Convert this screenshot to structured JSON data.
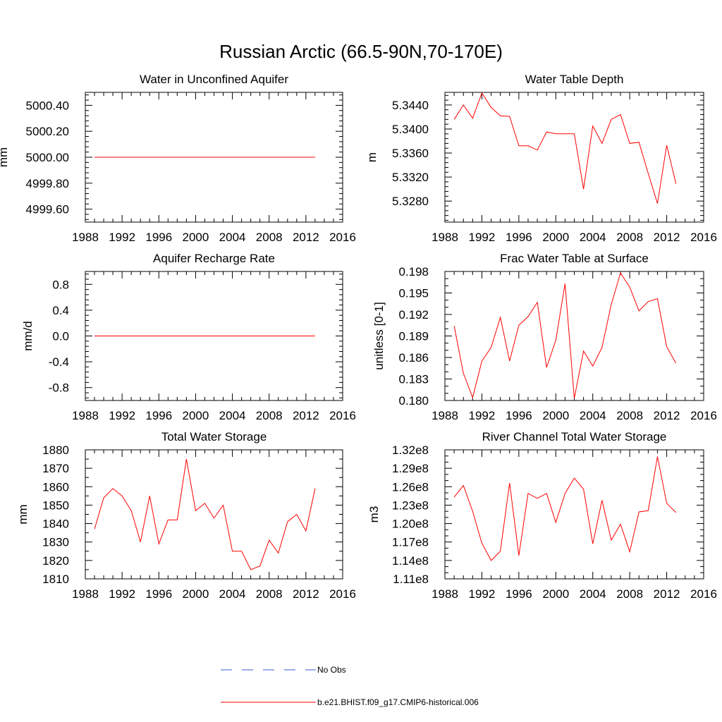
{
  "figure": {
    "title": "Russian Arctic (66.5-90N,70-170E)"
  },
  "legend": {
    "items": [
      {
        "label": "No Obs",
        "color": "#3b5bd6",
        "style": "dashed"
      },
      {
        "label": "b.e21.BHIST.f09_g17.CMIP6-historical.006",
        "color": "#ff0000",
        "style": "solid"
      }
    ]
  },
  "chart_data": [
    {
      "type": "line",
      "title": "Water in Unconfined Aquifer",
      "xlabel": "",
      "ylabel": "mm",
      "xlim": [
        1988,
        2016
      ],
      "ylim": [
        4999.5,
        5000.5
      ],
      "xticks": [
        1988,
        1992,
        1996,
        2000,
        2004,
        2008,
        2012,
        2016
      ],
      "yticks": [
        4999.6,
        4999.8,
        5000.0,
        5000.2,
        5000.4
      ],
      "ytick_labels": [
        "4999.60",
        "4999.80",
        "5000.00",
        "5000.20",
        "5000.40"
      ],
      "yminor": 4,
      "x": [
        1989,
        1990,
        1991,
        1992,
        1993,
        1994,
        1995,
        1996,
        1997,
        1998,
        1999,
        2000,
        2001,
        2002,
        2003,
        2004,
        2005,
        2006,
        2007,
        2008,
        2009,
        2010,
        2011,
        2012,
        2013
      ],
      "series": [
        {
          "values": [
            5000.0,
            5000.0,
            5000.0,
            5000.0,
            5000.0,
            5000.0,
            5000.0,
            5000.0,
            5000.0,
            5000.0,
            5000.0,
            5000.0,
            5000.0,
            5000.0,
            5000.0,
            5000.0,
            5000.0,
            5000.0,
            5000.0,
            5000.0,
            5000.0,
            5000.0,
            5000.0,
            5000.0,
            5000.0
          ]
        }
      ]
    },
    {
      "type": "line",
      "title": "Water Table Depth",
      "xlabel": "",
      "ylabel": "m",
      "xlim": [
        1988,
        2016
      ],
      "ylim": [
        5.3245,
        5.3461
      ],
      "xticks": [
        1988,
        1992,
        1996,
        2000,
        2004,
        2008,
        2012,
        2016
      ],
      "yticks": [
        5.328,
        5.332,
        5.336,
        5.34,
        5.344
      ],
      "ytick_labels": [
        "5.3280",
        "5.3320",
        "5.3360",
        "5.3400",
        "5.3440"
      ],
      "yminor": 4,
      "x": [
        1989,
        1990,
        1991,
        1992,
        1993,
        1994,
        1995,
        1996,
        1997,
        1998,
        1999,
        2000,
        2001,
        2002,
        2003,
        2004,
        2005,
        2006,
        2007,
        2008,
        2009,
        2010,
        2011,
        2012,
        2013
      ],
      "series": [
        {
          "values": [
            5.3416,
            5.344,
            5.3418,
            5.346,
            5.3436,
            5.3422,
            5.3421,
            5.3372,
            5.3372,
            5.3365,
            5.3395,
            5.3392,
            5.3392,
            5.3392,
            5.33,
            5.3405,
            5.3376,
            5.3416,
            5.3424,
            5.3376,
            5.3378,
            5.3326,
            5.3276,
            5.3373,
            5.3309
          ]
        }
      ]
    },
    {
      "type": "line",
      "title": "Aquifer Recharge Rate",
      "xlabel": "",
      "ylabel": "mm/d",
      "xlim": [
        1988,
        2016
      ],
      "ylim": [
        -1.0,
        1.0
      ],
      "xticks": [
        1988,
        1992,
        1996,
        2000,
        2004,
        2008,
        2012,
        2016
      ],
      "yticks": [
        -0.8,
        -0.4,
        0.0,
        0.4,
        0.8
      ],
      "ytick_labels": [
        "-0.8",
        "-0.4",
        "0.0",
        "0.4",
        "0.8"
      ],
      "yminor": 4,
      "x": [
        1989,
        1990,
        1991,
        1992,
        1993,
        1994,
        1995,
        1996,
        1997,
        1998,
        1999,
        2000,
        2001,
        2002,
        2003,
        2004,
        2005,
        2006,
        2007,
        2008,
        2009,
        2010,
        2011,
        2012,
        2013
      ],
      "series": [
        {
          "values": [
            0,
            0,
            0,
            0,
            0,
            0,
            0,
            0,
            0,
            0,
            0,
            0,
            0,
            0,
            0,
            0,
            0,
            0,
            0,
            0,
            0,
            0,
            0,
            0,
            0
          ]
        }
      ]
    },
    {
      "type": "line",
      "title": "Frac Water Table at Surface",
      "xlabel": "",
      "ylabel": "unitless [0-1]",
      "xlim": [
        1988,
        2016
      ],
      "ylim": [
        0.18,
        0.198
      ],
      "xticks": [
        1988,
        1992,
        1996,
        2000,
        2004,
        2008,
        2012,
        2016
      ],
      "yticks": [
        0.18,
        0.183,
        0.186,
        0.189,
        0.192,
        0.195,
        0.198
      ],
      "ytick_labels": [
        "0.180",
        "0.183",
        "0.186",
        "0.189",
        "0.192",
        "0.195",
        "0.198"
      ],
      "yminor": 2,
      "x": [
        1989,
        1990,
        1991,
        1992,
        1993,
        1994,
        1995,
        1996,
        1997,
        1998,
        1999,
        2000,
        2001,
        2002,
        2003,
        2004,
        2005,
        2006,
        2007,
        2008,
        2009,
        2010,
        2011,
        2012,
        2013
      ],
      "series": [
        {
          "values": [
            0.1904,
            0.1838,
            0.1804,
            0.1855,
            0.1874,
            0.1916,
            0.1855,
            0.1905,
            0.1917,
            0.1937,
            0.1846,
            0.1884,
            0.1963,
            0.1803,
            0.1869,
            0.1848,
            0.1874,
            0.1934,
            0.1978,
            0.1958,
            0.1925,
            0.1938,
            0.1942,
            0.1875,
            0.1852
          ]
        }
      ]
    },
    {
      "type": "line",
      "title": "Total Water Storage",
      "xlabel": "",
      "ylabel": "mm",
      "xlim": [
        1988,
        2016
      ],
      "ylim": [
        1810,
        1880
      ],
      "xticks": [
        1988,
        1992,
        1996,
        2000,
        2004,
        2008,
        2012,
        2016
      ],
      "yticks": [
        1810,
        1820,
        1830,
        1840,
        1850,
        1860,
        1870,
        1880
      ],
      "ytick_labels": [
        "1810",
        "1820",
        "1830",
        "1840",
        "1850",
        "1860",
        "1870",
        "1880"
      ],
      "yminor": 1,
      "x": [
        1989,
        1990,
        1991,
        1992,
        1993,
        1994,
        1995,
        1996,
        1997,
        1998,
        1999,
        2000,
        2001,
        2002,
        2003,
        2004,
        2005,
        2006,
        2007,
        2008,
        2009,
        2010,
        2011,
        2012,
        2013
      ],
      "series": [
        {
          "values": [
            1837,
            1854,
            1859,
            1855,
            1847,
            1830,
            1855,
            1829,
            1842,
            1842,
            1875,
            1847,
            1851,
            1843,
            1850,
            1825,
            1825,
            1815,
            1817,
            1831,
            1824,
            1841,
            1845,
            1836,
            1859
          ]
        }
      ]
    },
    {
      "type": "line",
      "title": "River Channel Total Water Storage",
      "xlabel": "",
      "ylabel": "m3",
      "xlim": [
        1988,
        2016
      ],
      "ylim": [
        111000000,
        132000000
      ],
      "xticks": [
        1988,
        1992,
        1996,
        2000,
        2004,
        2008,
        2012,
        2016
      ],
      "yticks": [
        111000000,
        114000000,
        117000000,
        120000000,
        123000000,
        126000000,
        129000000,
        132000000
      ],
      "ytick_labels": [
        "1.11e8",
        "1.14e8",
        "1.17e8",
        "1.20e8",
        "1.23e8",
        "1.26e8",
        "1.29e8",
        "1.32e8"
      ],
      "yminor": 2,
      "x": [
        1989,
        1990,
        1991,
        1992,
        1993,
        1994,
        1995,
        1996,
        1997,
        1998,
        1999,
        2000,
        2001,
        2002,
        2003,
        2004,
        2005,
        2006,
        2007,
        2008,
        2009,
        2010,
        2011,
        2012,
        2013
      ],
      "series": [
        {
          "values": [
            124300000,
            126200000,
            122000000,
            116800000,
            114000000,
            115500000,
            126600000,
            114800000,
            124900000,
            124100000,
            124900000,
            120200000,
            124900000,
            127400000,
            125600000,
            116700000,
            123800000,
            117300000,
            119900000,
            115400000,
            121900000,
            122100000,
            130900000,
            123300000,
            121800000
          ]
        }
      ]
    }
  ]
}
